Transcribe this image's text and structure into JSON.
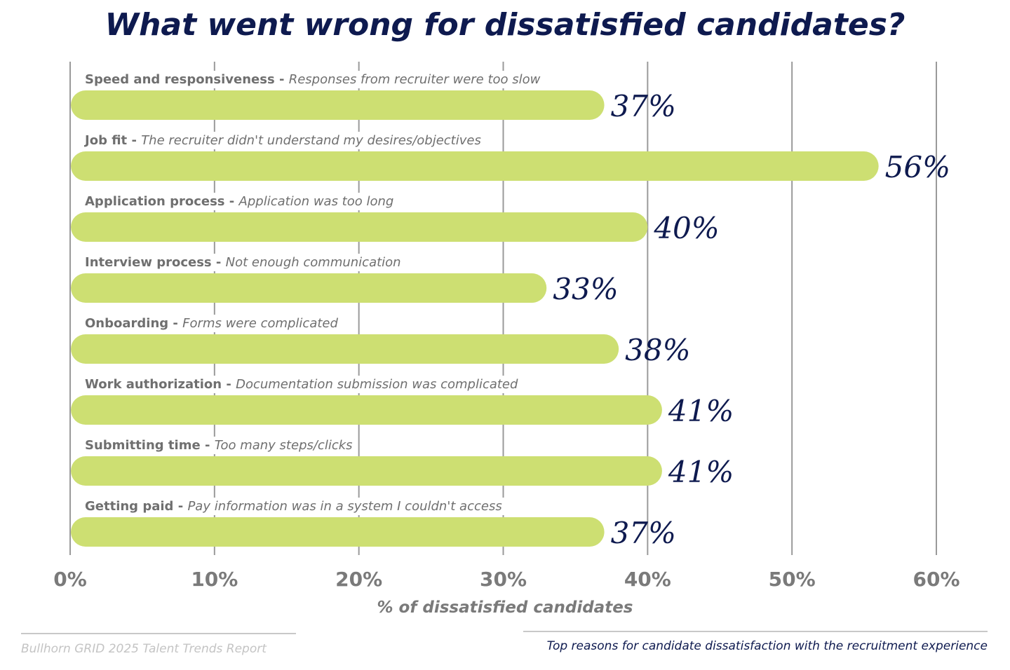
{
  "chart_data": {
    "type": "bar",
    "orientation": "horizontal",
    "title": "What went wrong for dissatisfied candidates?",
    "xlabel": "% of dissatisfied candidates",
    "xlim": [
      0,
      60
    ],
    "xticks": [
      "0%",
      "10%",
      "20%",
      "30%",
      "40%",
      "50%",
      "60%"
    ],
    "grid": true,
    "categories": [
      {
        "name": "Speed and responsiveness",
        "detail": "Responses from recruiter were too slow"
      },
      {
        "name": "Job fit",
        "detail": "The recruiter didn't understand my desires/objectives"
      },
      {
        "name": "Application process",
        "detail": "Application was too long"
      },
      {
        "name": "Interview process",
        "detail": "Not enough communication"
      },
      {
        "name": "Onboarding",
        "detail": "Forms were complicated"
      },
      {
        "name": "Work authorization",
        "detail": "Documentation submission was complicated"
      },
      {
        "name": "Submitting time",
        "detail": "Too many steps/clicks"
      },
      {
        "name": "Getting paid",
        "detail": "Pay information was in a system I couldn't access"
      }
    ],
    "values": [
      37,
      56,
      40,
      33,
      38,
      41,
      41,
      37
    ],
    "value_labels": [
      "37%",
      "56%",
      "40%",
      "33%",
      "38%",
      "41%",
      "41%",
      "37%"
    ],
    "colors": {
      "bar": "#cddf72",
      "title": "#0e1a4f",
      "value": "#0e1a4f",
      "text": "#6f6f6f",
      "grid": "#9a9a9a"
    }
  },
  "footer": {
    "source": "Bullhorn GRID 2025 Talent Trends Report",
    "caption": "Top reasons for candidate dissatisfaction with the recruitment experience"
  }
}
